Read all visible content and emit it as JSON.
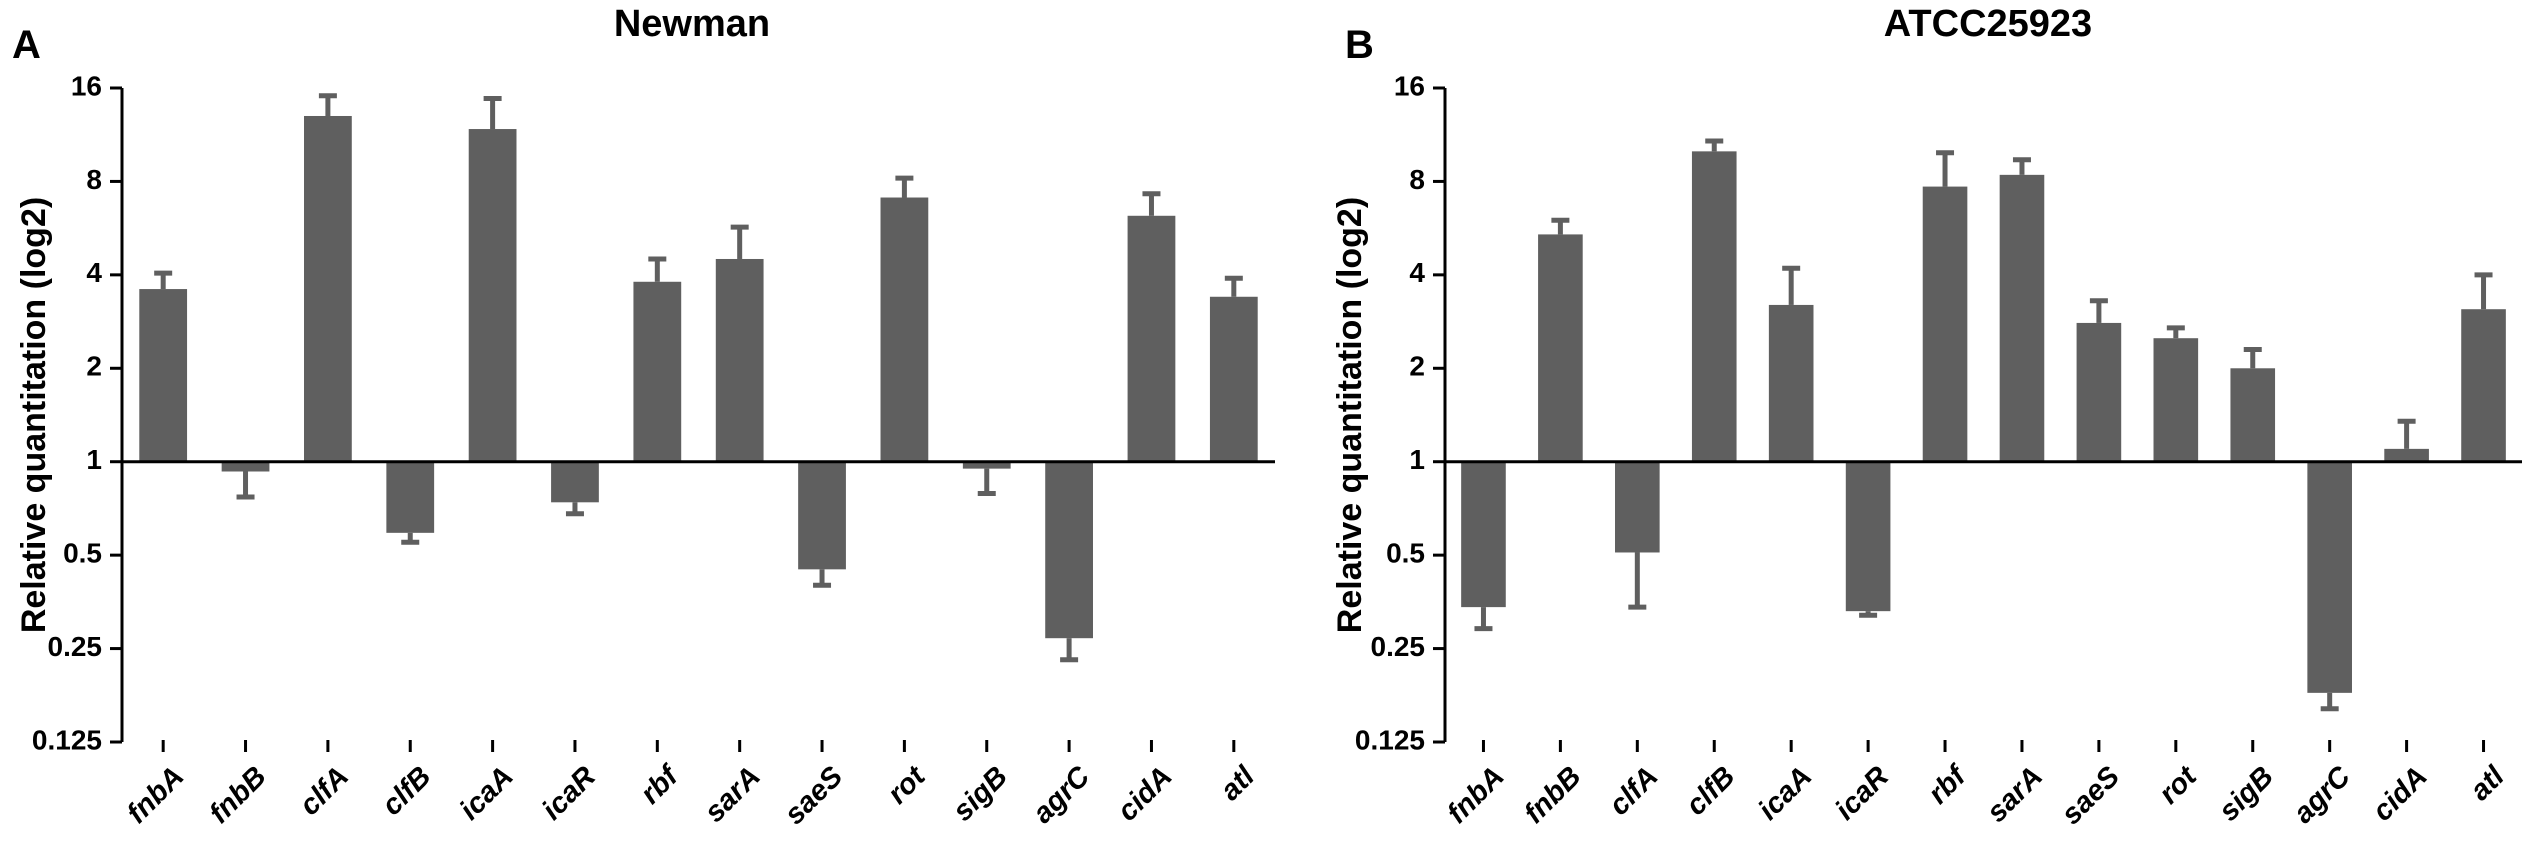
{
  "chart_data": [
    {
      "type": "bar",
      "panel": "A",
      "title": "Newman",
      "ylabel": "Relative quantitation (log2)",
      "xlabel": "",
      "yscale": "log2",
      "ylim": [
        0.125,
        16
      ],
      "yticks": [
        "16",
        "8",
        "4",
        "2",
        "1",
        "0.5",
        "0.25",
        "0.125"
      ],
      "baseline": 1,
      "categories": [
        "fnbA",
        "fnbB",
        "clfA",
        "clfB",
        "icaA",
        "icaR",
        "rbf",
        "sarA",
        "saeS",
        "rot",
        "sigB",
        "agrC",
        "cidA",
        "atl"
      ],
      "values": [
        3.6,
        0.93,
        13.0,
        0.59,
        11.8,
        0.74,
        3.8,
        4.5,
        0.45,
        7.1,
        0.95,
        0.27,
        6.2,
        3.4
      ],
      "errors": [
        0.45,
        0.16,
        2.1,
        0.04,
        3.0,
        0.06,
        0.7,
        1.2,
        0.05,
        1.1,
        0.16,
        0.04,
        1.1,
        0.5
      ]
    },
    {
      "type": "bar",
      "panel": "B",
      "title": "ATCC25923",
      "ylabel": "Relative quantitation (log2)",
      "xlabel": "",
      "yscale": "log2",
      "ylim": [
        0.125,
        16
      ],
      "yticks": [
        "16",
        "8",
        "4",
        "2",
        "1",
        "0.5",
        "0.25",
        "0.125"
      ],
      "baseline": 1,
      "categories": [
        "fnbA",
        "fnbB",
        "clfA",
        "clfB",
        "icaA",
        "icaR",
        "rbf",
        "sarA",
        "saeS",
        "rot",
        "sigB",
        "agrC",
        "cidA",
        "atl"
      ],
      "values": [
        0.34,
        5.4,
        0.51,
        10.0,
        3.2,
        0.33,
        7.7,
        8.4,
        2.8,
        2.5,
        2.0,
        0.18,
        1.1,
        3.1
      ],
      "errors": [
        0.05,
        0.6,
        0.17,
        0.8,
        1.0,
        0.01,
        2.2,
        1.0,
        0.5,
        0.2,
        0.3,
        0.02,
        0.25,
        0.9
      ]
    }
  ]
}
